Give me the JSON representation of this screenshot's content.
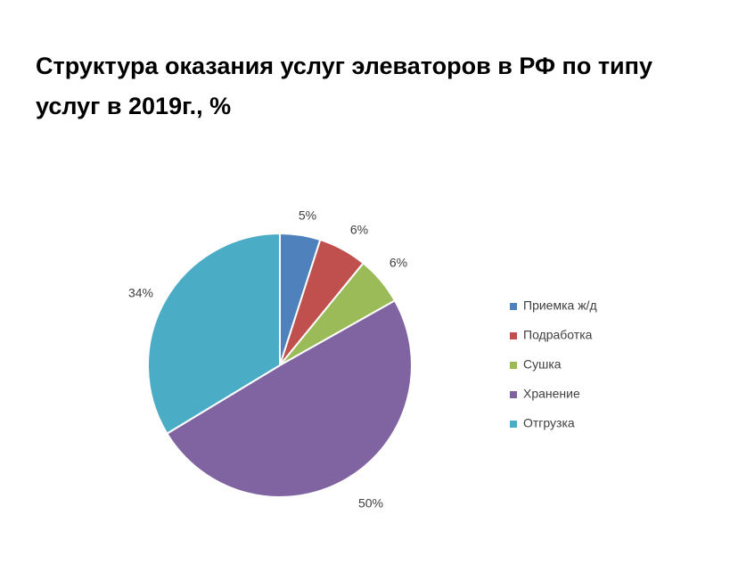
{
  "chart_data": {
    "type": "pie",
    "title": "Структура оказания услуг элеваторов в РФ по типу услуг в 2019г., %",
    "categories": [
      "Приемка ж/д",
      "Подработка",
      "Сушка",
      "Хранение",
      "Отгрузка"
    ],
    "values": [
      5,
      6,
      6,
      50,
      34
    ],
    "labels": [
      "5%",
      "6%",
      "6%",
      "50%",
      "34%"
    ],
    "colors": [
      "#4F81BD",
      "#C0504D",
      "#9BBB59",
      "#8064A2",
      "#4BACC6"
    ],
    "legend_position": "right"
  }
}
